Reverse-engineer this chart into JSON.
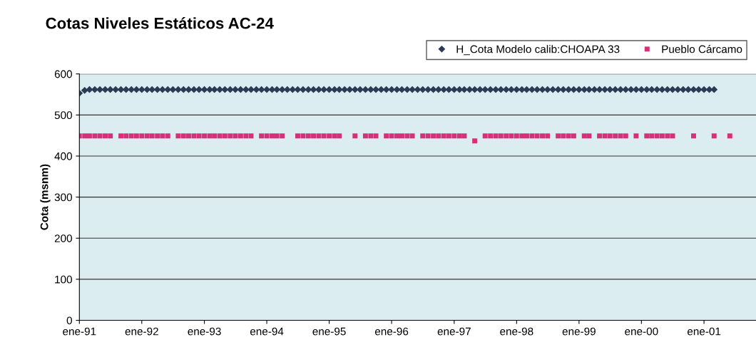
{
  "chart_data": {
    "type": "scatter",
    "title": "Cotas Niveles Estáticos AC-24",
    "ylabel": "Cota (msnm)",
    "ylim": [
      0,
      600
    ],
    "yticks": [
      0,
      100,
      200,
      300,
      400,
      500,
      600
    ],
    "xlim": [
      "1991-01",
      "2001-11"
    ],
    "xticks": [
      {
        "value": "1991-01",
        "label": "ene-91"
      },
      {
        "value": "1992-01",
        "label": "ene-92"
      },
      {
        "value": "1993-01",
        "label": "ene-93"
      },
      {
        "value": "1994-01",
        "label": "ene-94"
      },
      {
        "value": "1995-01",
        "label": "ene-95"
      },
      {
        "value": "1996-01",
        "label": "ene-96"
      },
      {
        "value": "1997-01",
        "label": "ene-97"
      },
      {
        "value": "1998-01",
        "label": "ene-98"
      },
      {
        "value": "1999-01",
        "label": "ene-99"
      },
      {
        "value": "2000-01",
        "label": "ene-00"
      },
      {
        "value": "2001-01",
        "label": "ene-01"
      }
    ],
    "grid": "y",
    "legend": "top right",
    "x": [
      "1991-01",
      "1991-02",
      "1991-03",
      "1991-04",
      "1991-05",
      "1991-06",
      "1991-07",
      "1991-08",
      "1991-09",
      "1991-10",
      "1991-11",
      "1991-12",
      "1992-01",
      "1992-02",
      "1992-03",
      "1992-04",
      "1992-05",
      "1992-06",
      "1992-07",
      "1992-08",
      "1992-09",
      "1992-10",
      "1992-11",
      "1992-12",
      "1993-01",
      "1993-02",
      "1993-03",
      "1993-04",
      "1993-05",
      "1993-06",
      "1993-07",
      "1993-08",
      "1993-09",
      "1993-10",
      "1993-11",
      "1993-12",
      "1994-01",
      "1994-02",
      "1994-03",
      "1994-04",
      "1994-05",
      "1994-06",
      "1994-07",
      "1994-08",
      "1994-09",
      "1994-10",
      "1994-11",
      "1994-12",
      "1995-01",
      "1995-02",
      "1995-03",
      "1995-04",
      "1995-05",
      "1995-06",
      "1995-07",
      "1995-08",
      "1995-09",
      "1995-10",
      "1995-11",
      "1995-12",
      "1996-01",
      "1996-02",
      "1996-03",
      "1996-04",
      "1996-05",
      "1996-06",
      "1996-07",
      "1996-08",
      "1996-09",
      "1996-10",
      "1996-11",
      "1996-12",
      "1997-01",
      "1997-02",
      "1997-03",
      "1997-04",
      "1997-05",
      "1997-06",
      "1997-07",
      "1997-08",
      "1997-09",
      "1997-10",
      "1997-11",
      "1997-12",
      "1998-01",
      "1998-02",
      "1998-03",
      "1998-04",
      "1998-05",
      "1998-06",
      "1998-07",
      "1998-08",
      "1998-09",
      "1998-10",
      "1998-11",
      "1998-12",
      "1999-01",
      "1999-02",
      "1999-03",
      "1999-04",
      "1999-05",
      "1999-06",
      "1999-07",
      "1999-08",
      "1999-09",
      "1999-10",
      "1999-11",
      "1999-12",
      "2000-01",
      "2000-02",
      "2000-03",
      "2000-04",
      "2000-05",
      "2000-06",
      "2000-07",
      "2000-08",
      "2000-09",
      "2000-10",
      "2000-11",
      "2000-12",
      "2001-01",
      "2001-02",
      "2001-03",
      "2001-04",
      "2001-05",
      "2001-06"
    ],
    "series": [
      {
        "name": "H_Cota Modelo calib:CHOAPA 33",
        "color": "#2b3a55",
        "marker": "diamond",
        "values": [
          553,
          560,
          562,
          562,
          562,
          562,
          562,
          562,
          562,
          562,
          562,
          562,
          562,
          562,
          562,
          562,
          562,
          562,
          562,
          562,
          562,
          562,
          562,
          562,
          562,
          562,
          562,
          562,
          562,
          562,
          562,
          562,
          562,
          562,
          562,
          562,
          562,
          562,
          562,
          562,
          562,
          562,
          562,
          562,
          562,
          562,
          562,
          562,
          562,
          562,
          562,
          562,
          562,
          562,
          562,
          562,
          562,
          562,
          562,
          562,
          562,
          562,
          562,
          562,
          562,
          562,
          562,
          562,
          562,
          562,
          562,
          562,
          562,
          562,
          562,
          562,
          562,
          562,
          562,
          562,
          562,
          562,
          562,
          562,
          562,
          562,
          562,
          562,
          562,
          562,
          562,
          562,
          562,
          562,
          562,
          562,
          562,
          562,
          562,
          562,
          562,
          562,
          562,
          562,
          562,
          562,
          562,
          562,
          562,
          562,
          562,
          562,
          562,
          562,
          562,
          562,
          562,
          562,
          562,
          562,
          562,
          562,
          562,
          null,
          null,
          null
        ]
      },
      {
        "name": "Pueblo Cárcamo",
        "color": "#d6307a",
        "marker": "square",
        "values": [
          449,
          449,
          449,
          449,
          449,
          449,
          449,
          null,
          449,
          449,
          449,
          449,
          449,
          449,
          449,
          449,
          449,
          449,
          null,
          449,
          449,
          449,
          449,
          449,
          449,
          449,
          449,
          449,
          449,
          449,
          449,
          449,
          449,
          449,
          null,
          449,
          449,
          449,
          449,
          449,
          null,
          null,
          449,
          449,
          449,
          449,
          449,
          449,
          449,
          449,
          449,
          null,
          null,
          449,
          null,
          449,
          449,
          449,
          null,
          449,
          449,
          449,
          449,
          449,
          449,
          null,
          449,
          449,
          449,
          449,
          449,
          449,
          449,
          449,
          449,
          null,
          437,
          null,
          449,
          449,
          449,
          449,
          449,
          449,
          449,
          449,
          449,
          449,
          449,
          449,
          449,
          null,
          449,
          449,
          449,
          449,
          null,
          449,
          449,
          null,
          449,
          449,
          449,
          449,
          449,
          449,
          null,
          449,
          null,
          449,
          449,
          449,
          449,
          449,
          449,
          null,
          null,
          null,
          449,
          null,
          null,
          null,
          449,
          null,
          null,
          449
        ]
      }
    ]
  }
}
